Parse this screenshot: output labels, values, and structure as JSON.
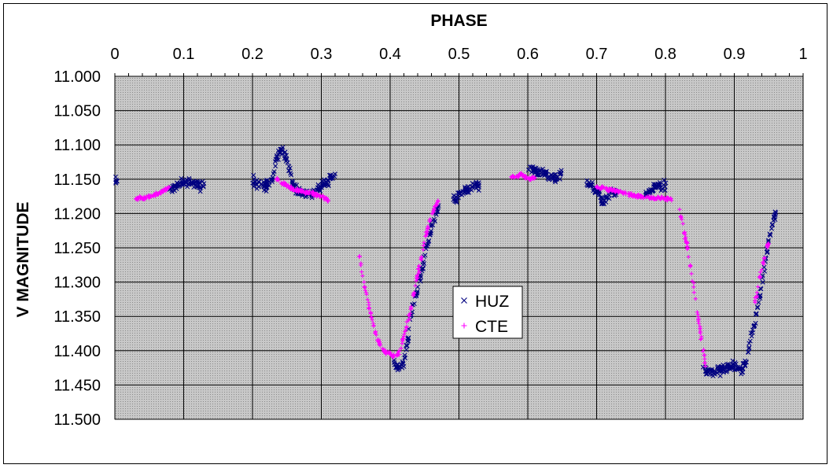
{
  "chart_data": {
    "type": "scatter",
    "title": "",
    "xlabel": "PHASE",
    "ylabel": "V MAGNITUDE",
    "xlim": [
      0,
      1
    ],
    "ylim": [
      11.0,
      11.5
    ],
    "y_inverted": true,
    "x_axis_position": "top",
    "x_ticks": [
      "0",
      "0.1",
      "0.2",
      "0.3",
      "0.4",
      "0.5",
      "0.6",
      "0.7",
      "0.8",
      "0.9",
      "1"
    ],
    "y_ticks": [
      "11.000",
      "11.050",
      "11.100",
      "11.150",
      "11.200",
      "11.250",
      "11.300",
      "11.350",
      "11.400",
      "11.450",
      "11.500"
    ],
    "grid": true,
    "plot_background": "#c0c0c0",
    "legend": {
      "position": "center",
      "entries": [
        "HUZ",
        "CTE"
      ]
    },
    "series": [
      {
        "name": "HUZ",
        "marker": "x",
        "color": "#000080",
        "segments": [
          [
            [
              0.0,
              11.148
            ],
            [
              0.003,
              11.155
            ]
          ],
          [
            [
              0.08,
              11.165
            ],
            [
              0.09,
              11.16
            ],
            [
              0.1,
              11.152
            ],
            [
              0.11,
              11.155
            ],
            [
              0.12,
              11.158
            ],
            [
              0.13,
              11.16
            ]
          ],
          [
            [
              0.2,
              11.15
            ],
            [
              0.21,
              11.158
            ],
            [
              0.22,
              11.16
            ],
            [
              0.23,
              11.15
            ],
            [
              0.235,
              11.118
            ],
            [
              0.24,
              11.11
            ],
            [
              0.245,
              11.105
            ],
            [
              0.25,
              11.125
            ],
            [
              0.26,
              11.16
            ],
            [
              0.27,
              11.168
            ],
            [
              0.28,
              11.172
            ],
            [
              0.29,
              11.17
            ],
            [
              0.32,
              11.143
            ]
          ],
          [
            [
              0.405,
              11.42
            ],
            [
              0.41,
              11.425
            ],
            [
              0.42,
              11.418
            ],
            [
              0.425,
              11.39
            ],
            [
              0.43,
              11.35
            ],
            [
              0.44,
              11.31
            ],
            [
              0.45,
              11.265
            ],
            [
              0.46,
              11.22
            ],
            [
              0.47,
              11.19
            ]
          ],
          [
            [
              0.49,
              11.18
            ],
            [
              0.5,
              11.175
            ],
            [
              0.51,
              11.165
            ],
            [
              0.52,
              11.16
            ],
            [
              0.53,
              11.158
            ]
          ],
          [
            [
              0.6,
              11.135
            ],
            [
              0.62,
              11.14
            ],
            [
              0.64,
              11.15
            ],
            [
              0.65,
              11.14
            ]
          ],
          [
            [
              0.685,
              11.155
            ],
            [
              0.69,
              11.158
            ],
            [
              0.7,
              11.165
            ],
            [
              0.71,
              11.185
            ],
            [
              0.72,
              11.168
            ],
            [
              0.73,
              11.17
            ]
          ],
          [
            [
              0.77,
              11.175
            ],
            [
              0.78,
              11.165
            ],
            [
              0.79,
              11.16
            ],
            [
              0.8,
              11.158
            ]
          ],
          [
            [
              0.855,
              11.425
            ],
            [
              0.86,
              11.43
            ],
            [
              0.87,
              11.432
            ],
            [
              0.88,
              11.428
            ],
            [
              0.89,
              11.425
            ],
            [
              0.9,
              11.42
            ],
            [
              0.91,
              11.43
            ],
            [
              0.915,
              11.42
            ],
            [
              0.92,
              11.4
            ],
            [
              0.93,
              11.36
            ],
            [
              0.94,
              11.3
            ],
            [
              0.95,
              11.24
            ],
            [
              0.96,
              11.2
            ]
          ]
        ]
      },
      {
        "name": "CTE",
        "marker": "+",
        "color": "#ff00ff",
        "segments": [
          [
            [
              0.03,
              11.178
            ],
            [
              0.04,
              11.178
            ],
            [
              0.05,
              11.176
            ],
            [
              0.06,
              11.172
            ],
            [
              0.07,
              11.168
            ],
            [
              0.08,
              11.16
            ]
          ],
          [
            [
              0.235,
              11.15
            ],
            [
              0.25,
              11.16
            ],
            [
              0.26,
              11.165
            ],
            [
              0.27,
              11.167
            ],
            [
              0.28,
              11.17
            ],
            [
              0.29,
              11.172
            ],
            [
              0.3,
              11.175
            ],
            [
              0.31,
              11.18
            ]
          ],
          [
            [
              0.355,
              11.26
            ],
            [
              0.36,
              11.29
            ],
            [
              0.37,
              11.34
            ],
            [
              0.38,
              11.38
            ],
            [
              0.39,
              11.4
            ],
            [
              0.4,
              11.405
            ],
            [
              0.41,
              11.408
            ],
            [
              0.415,
              11.4
            ],
            [
              0.42,
              11.38
            ],
            [
              0.43,
              11.34
            ],
            [
              0.44,
              11.29
            ],
            [
              0.45,
              11.24
            ],
            [
              0.46,
              11.2
            ],
            [
              0.47,
              11.182
            ]
          ],
          [
            [
              0.575,
              11.145
            ],
            [
              0.58,
              11.148
            ],
            [
              0.59,
              11.142
            ],
            [
              0.6,
              11.15
            ],
            [
              0.61,
              11.148
            ]
          ],
          [
            [
              0.7,
              11.162
            ],
            [
              0.72,
              11.165
            ],
            [
              0.74,
              11.17
            ],
            [
              0.76,
              11.175
            ],
            [
              0.78,
              11.178
            ],
            [
              0.8,
              11.178
            ],
            [
              0.81,
              11.18
            ]
          ],
          [
            [
              0.82,
              11.195
            ],
            [
              0.83,
              11.24
            ],
            [
              0.84,
              11.3
            ],
            [
              0.85,
              11.37
            ],
            [
              0.86,
              11.43
            ]
          ],
          [
            [
              0.93,
              11.33
            ],
            [
              0.94,
              11.28
            ],
            [
              0.95,
              11.24
            ]
          ]
        ]
      }
    ]
  }
}
